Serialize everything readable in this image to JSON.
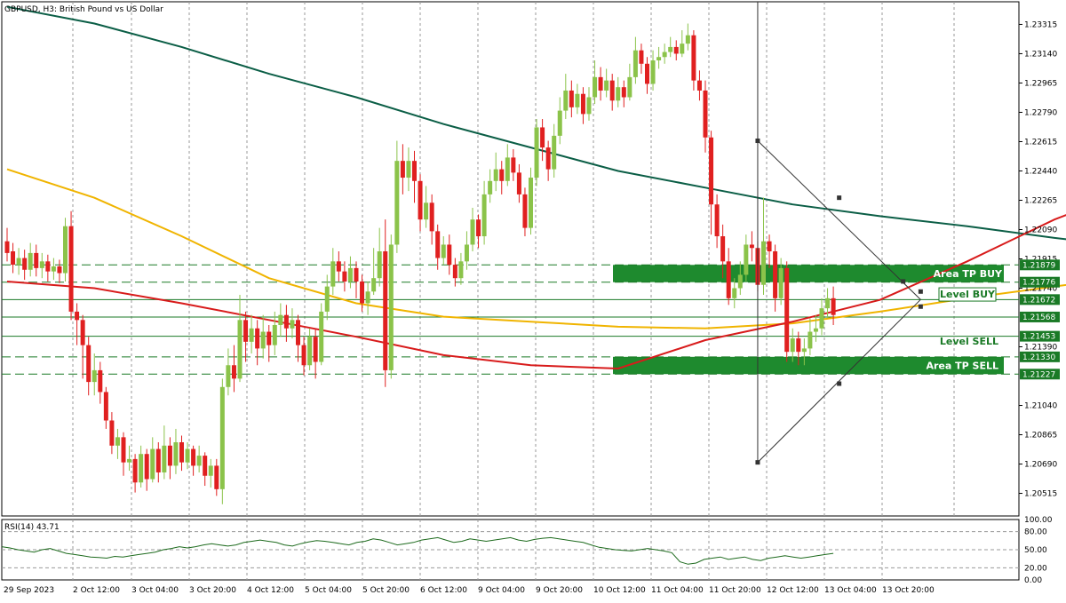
{
  "header": {
    "symbol_text": "GBPUSD, H3:  British Pound vs US Dollar"
  },
  "rsi_label": "RSI(14) 43.71",
  "colors": {
    "bull": "#8bc34a",
    "bear": "#e02020",
    "ma_slow": "#0b5e46",
    "ma_mid": "#f0b400",
    "ma_fast": "#d81b1b",
    "zone": "#1e8a2e",
    "label_bg": "#1a7a26",
    "rsi": "#1e6b1e",
    "grid": "#9a9a9a"
  },
  "chart_data": {
    "type": "candlestick",
    "price_axis": {
      "range": [
        1.2038,
        1.2345
      ],
      "ticks": [
        "1.23315",
        "1.23140",
        "1.22965",
        "1.22790",
        "1.22615",
        "1.22440",
        "1.22265",
        "1.22090",
        "1.21915",
        "1.21740",
        "1.21390",
        "1.21040",
        "1.20865",
        "1.20690",
        "1.20515"
      ]
    },
    "time_labels": [
      "29 Sep 2023",
      "2 Oct 12:00",
      "3 Oct 04:00",
      "3 Oct 20:00",
      "4 Oct 12:00",
      "5 Oct 04:00",
      "5 Oct 20:00",
      "6 Oct 12:00",
      "9 Oct 04:00",
      "9 Oct 20:00",
      "10 Oct 12:00",
      "11 Oct 04:00",
      "11 Oct 20:00",
      "12 Oct 12:00",
      "13 Oct 04:00",
      "13 Oct 20:00"
    ],
    "candles": [
      [
        1.2202,
        1.2195,
        1.221,
        1.219
      ],
      [
        1.2196,
        1.2188,
        1.2201,
        1.2183
      ],
      [
        1.2188,
        1.2192,
        1.2198,
        1.2182
      ],
      [
        1.2192,
        1.2185,
        1.2197,
        1.2179
      ],
      [
        1.2185,
        1.2195,
        1.2201,
        1.2181
      ],
      [
        1.2195,
        1.2186,
        1.22,
        1.2181
      ],
      [
        1.2186,
        1.219,
        1.2195,
        1.218
      ],
      [
        1.219,
        1.2184,
        1.2194,
        1.2178
      ],
      [
        1.2184,
        1.2187,
        1.2192,
        1.2179
      ],
      [
        1.2187,
        1.2183,
        1.2191,
        1.2177
      ],
      [
        1.2183,
        1.2211,
        1.2216,
        1.2178
      ],
      [
        1.2211,
        1.216,
        1.222,
        1.2155
      ],
      [
        1.216,
        1.2155,
        1.2165,
        1.214
      ],
      [
        1.2155,
        1.214,
        1.2158,
        1.212
      ],
      [
        1.214,
        1.2118,
        1.2145,
        1.211
      ],
      [
        1.2118,
        1.2125,
        1.2135,
        1.211
      ],
      [
        1.2125,
        1.2112,
        1.213,
        1.2105
      ],
      [
        1.2112,
        1.2095,
        1.2115,
        1.209
      ],
      [
        1.2095,
        1.208,
        1.21,
        1.2075
      ],
      [
        1.208,
        1.2085,
        1.209,
        1.2072
      ],
      [
        1.2085,
        1.207,
        1.2088,
        1.2062
      ],
      [
        1.207,
        1.2072,
        1.208,
        1.2065
      ],
      [
        1.2072,
        1.2058,
        1.2075,
        1.2052
      ],
      [
        1.2058,
        1.2075,
        1.208,
        1.2055
      ],
      [
        1.2075,
        1.206,
        1.2078,
        1.2053
      ],
      [
        1.206,
        1.2078,
        1.2085,
        1.2058
      ],
      [
        1.2078,
        1.2064,
        1.2082,
        1.2058
      ],
      [
        1.2064,
        1.208,
        1.2092,
        1.206
      ],
      [
        1.208,
        1.2068,
        1.2085,
        1.206
      ],
      [
        1.2068,
        1.2082,
        1.209,
        1.2063
      ],
      [
        1.2082,
        1.207,
        1.2086,
        1.2065
      ],
      [
        1.207,
        1.2078,
        1.2082,
        1.2066
      ],
      [
        1.2078,
        1.2068,
        1.208,
        1.2062
      ],
      [
        1.2068,
        1.2074,
        1.208,
        1.2064
      ],
      [
        1.2074,
        1.2062,
        1.2076,
        1.2056
      ],
      [
        1.2062,
        1.2068,
        1.2072,
        1.2055
      ],
      [
        1.2068,
        1.2054,
        1.2072,
        1.205
      ],
      [
        1.2054,
        1.2115,
        1.212,
        1.2045
      ],
      [
        1.2115,
        1.2128,
        1.2138,
        1.211
      ],
      [
        1.2128,
        1.212,
        1.214,
        1.2112
      ],
      [
        1.212,
        1.2155,
        1.217,
        1.2118
      ],
      [
        1.2155,
        1.2142,
        1.216,
        1.213
      ],
      [
        1.2142,
        1.215,
        1.2158,
        1.2135
      ],
      [
        1.215,
        1.2138,
        1.2155,
        1.2128
      ],
      [
        1.2138,
        1.2148,
        1.2158,
        1.2132
      ],
      [
        1.2148,
        1.214,
        1.2152,
        1.213
      ],
      [
        1.214,
        1.2152,
        1.216,
        1.2134
      ],
      [
        1.2152,
        1.2158,
        1.2165,
        1.2145
      ],
      [
        1.2158,
        1.215,
        1.2164,
        1.2142
      ],
      [
        1.215,
        1.2155,
        1.2162,
        1.2144
      ],
      [
        1.2155,
        1.214,
        1.2158,
        1.213
      ],
      [
        1.214,
        1.2128,
        1.2145,
        1.2122
      ],
      [
        1.2128,
        1.2145,
        1.215,
        1.2125
      ],
      [
        1.2145,
        1.213,
        1.215,
        1.212
      ],
      [
        1.213,
        1.216,
        1.2165,
        1.2128
      ],
      [
        1.216,
        1.2175,
        1.2182,
        1.2155
      ],
      [
        1.2175,
        1.219,
        1.2198,
        1.217
      ],
      [
        1.219,
        1.2184,
        1.2196,
        1.2178
      ],
      [
        1.2184,
        1.2178,
        1.219,
        1.2172
      ],
      [
        1.2178,
        1.2186,
        1.2193,
        1.2174
      ],
      [
        1.2186,
        1.2178,
        1.219,
        1.2168
      ],
      [
        1.2178,
        1.2165,
        1.2182,
        1.216
      ],
      [
        1.2165,
        1.2172,
        1.2178,
        1.2158
      ],
      [
        1.2172,
        1.218,
        1.2198,
        1.217
      ],
      [
        1.218,
        1.2196,
        1.221,
        1.2175
      ],
      [
        1.2196,
        1.2125,
        1.2215,
        1.2115
      ],
      [
        1.2125,
        1.22,
        1.2206,
        1.212
      ],
      [
        1.22,
        1.225,
        1.2262,
        1.2195
      ],
      [
        1.225,
        1.224,
        1.226,
        1.223
      ],
      [
        1.224,
        1.225,
        1.2258,
        1.2232
      ],
      [
        1.225,
        1.2238,
        1.2256,
        1.2225
      ],
      [
        1.2238,
        1.2215,
        1.2242,
        1.2208
      ],
      [
        1.2215,
        1.2225,
        1.2235,
        1.221
      ],
      [
        1.2225,
        1.2208,
        1.223,
        1.22
      ],
      [
        1.2208,
        1.2192,
        1.2212,
        1.2185
      ],
      [
        1.2192,
        1.22,
        1.2205,
        1.2188
      ],
      [
        1.22,
        1.2188,
        1.2206,
        1.2182
      ],
      [
        1.2188,
        1.218,
        1.2192,
        1.2175
      ],
      [
        1.218,
        1.219,
        1.2195,
        1.2176
      ],
      [
        1.219,
        1.22,
        1.2208,
        1.2185
      ],
      [
        1.22,
        1.2215,
        1.2222,
        1.2196
      ],
      [
        1.2215,
        1.2205,
        1.2218,
        1.2198
      ],
      [
        1.2205,
        1.223,
        1.2238,
        1.22
      ],
      [
        1.223,
        1.2238,
        1.2245,
        1.2225
      ],
      [
        1.2238,
        1.2245,
        1.2255,
        1.2232
      ],
      [
        1.2245,
        1.2238,
        1.225,
        1.223
      ],
      [
        1.2238,
        1.2252,
        1.226,
        1.2235
      ],
      [
        1.2252,
        1.2243,
        1.2257,
        1.2238
      ],
      [
        1.2243,
        1.223,
        1.2248,
        1.2225
      ],
      [
        1.223,
        1.221,
        1.2234,
        1.2205
      ],
      [
        1.221,
        1.224,
        1.2246,
        1.2206
      ],
      [
        1.224,
        1.227,
        1.2275,
        1.2235
      ],
      [
        1.227,
        1.2258,
        1.2275,
        1.225
      ],
      [
        1.2258,
        1.2245,
        1.2262,
        1.2238
      ],
      [
        1.2245,
        1.2265,
        1.2272,
        1.224
      ],
      [
        1.2265,
        1.228,
        1.2288,
        1.226
      ],
      [
        1.228,
        1.2292,
        1.2302,
        1.2275
      ],
      [
        1.2292,
        1.2282,
        1.2298,
        1.2276
      ],
      [
        1.2282,
        1.229,
        1.2296,
        1.2278
      ],
      [
        1.229,
        1.2278,
        1.2294,
        1.2272
      ],
      [
        1.2278,
        1.2288,
        1.2294,
        1.2274
      ],
      [
        1.2288,
        1.23,
        1.231,
        1.2284
      ],
      [
        1.23,
        1.2292,
        1.2306,
        1.2286
      ],
      [
        1.2292,
        1.2298,
        1.2305,
        1.2288
      ],
      [
        1.2298,
        1.2286,
        1.2302,
        1.228
      ],
      [
        1.2286,
        1.2294,
        1.23,
        1.2282
      ],
      [
        1.2294,
        1.2288,
        1.2298,
        1.2282
      ],
      [
        1.2288,
        1.23,
        1.2308,
        1.2286
      ],
      [
        1.23,
        1.2316,
        1.2324,
        1.2296
      ],
      [
        1.2316,
        1.2308,
        1.232,
        1.2302
      ],
      [
        1.2308,
        1.2296,
        1.2312,
        1.229
      ],
      [
        1.2296,
        1.231,
        1.2316,
        1.2292
      ],
      [
        1.231,
        1.2312,
        1.2318,
        1.2305
      ],
      [
        1.2312,
        1.2315,
        1.232,
        1.2308
      ],
      [
        1.2315,
        1.2318,
        1.2324,
        1.2312
      ],
      [
        1.2318,
        1.2314,
        1.2322,
        1.231
      ],
      [
        1.2314,
        1.232,
        1.2328,
        1.2312
      ],
      [
        1.232,
        1.2325,
        1.2332,
        1.2316
      ],
      [
        1.2325,
        1.2298,
        1.2328,
        1.2292
      ],
      [
        1.2298,
        1.2292,
        1.2304,
        1.2286
      ],
      [
        1.2292,
        1.2264,
        1.2298,
        1.2255
      ],
      [
        1.2264,
        1.2224,
        1.2268,
        1.2206
      ],
      [
        1.2224,
        1.2205,
        1.223,
        1.2198
      ],
      [
        1.2205,
        1.219,
        1.2212,
        1.218
      ],
      [
        1.219,
        1.2168,
        1.2198,
        1.2164
      ],
      [
        1.2168,
        1.2174,
        1.218,
        1.2162
      ],
      [
        1.2174,
        1.2182,
        1.219,
        1.217
      ],
      [
        1.2182,
        1.22,
        1.2206,
        1.2178
      ],
      [
        1.22,
        1.2198,
        1.2208,
        1.219
      ],
      [
        1.2198,
        1.2176,
        1.2202,
        1.2172
      ],
      [
        1.2176,
        1.2202,
        1.2228,
        1.217
      ],
      [
        1.2202,
        1.2196,
        1.2206,
        1.2186
      ],
      [
        1.2196,
        1.2168,
        1.22,
        1.216
      ],
      [
        1.2168,
        1.2186,
        1.2192,
        1.2164
      ],
      [
        1.2186,
        1.2136,
        1.219,
        1.213
      ],
      [
        1.2136,
        1.2144,
        1.215,
        1.213
      ],
      [
        1.2144,
        1.2136,
        1.2148,
        1.2128
      ],
      [
        1.2136,
        1.2138,
        1.2144,
        1.2128
      ],
      [
        1.2138,
        1.2148,
        1.2156,
        1.2134
      ],
      [
        1.2148,
        1.215,
        1.2158,
        1.2142
      ],
      [
        1.215,
        1.2162,
        1.2168,
        1.2146
      ],
      [
        1.2162,
        1.2168,
        1.2174,
        1.2156
      ],
      [
        1.2168,
        1.2158,
        1.2175,
        1.2152
      ]
    ],
    "moving_averages": [
      {
        "role": "ma_slow",
        "points": [
          [
            0,
            1.2342
          ],
          [
            15,
            1.2332
          ],
          [
            30,
            1.2318
          ],
          [
            45,
            1.2302
          ],
          [
            60,
            1.2288
          ],
          [
            75,
            1.2272
          ],
          [
            90,
            1.2258
          ],
          [
            105,
            1.2244
          ],
          [
            120,
            1.2234
          ],
          [
            135,
            1.2224
          ],
          [
            150,
            1.2217
          ],
          [
            165,
            1.2211
          ],
          [
            180,
            1.2204
          ],
          [
            195,
            1.2198
          ],
          [
            210,
            1.2195
          ],
          [
            225,
            1.2192
          ],
          [
            240,
            1.2189
          ]
        ]
      },
      {
        "role": "ma_mid",
        "points": [
          [
            0,
            1.2245
          ],
          [
            15,
            1.2228
          ],
          [
            30,
            1.2205
          ],
          [
            45,
            1.218
          ],
          [
            60,
            1.2165
          ],
          [
            75,
            1.2157
          ],
          [
            90,
            1.2154
          ],
          [
            105,
            1.2151
          ],
          [
            120,
            1.215
          ],
          [
            135,
            1.2153
          ],
          [
            150,
            1.216
          ],
          [
            165,
            1.2168
          ],
          [
            180,
            1.2175
          ],
          [
            195,
            1.2182
          ],
          [
            210,
            1.2185
          ],
          [
            225,
            1.2195
          ],
          [
            240,
            1.2205
          ]
        ]
      },
      {
        "role": "ma_fast",
        "points": [
          [
            0,
            1.2178
          ],
          [
            15,
            1.2174
          ],
          [
            30,
            1.2165
          ],
          [
            45,
            1.2155
          ],
          [
            60,
            1.2145
          ],
          [
            75,
            1.2134
          ],
          [
            90,
            1.2128
          ],
          [
            105,
            1.2126
          ],
          [
            120,
            1.2143
          ],
          [
            135,
            1.2154
          ],
          [
            150,
            1.2167
          ],
          [
            165,
            1.219
          ],
          [
            180,
            1.2215
          ],
          [
            195,
            1.2235
          ],
          [
            210,
            1.2248
          ],
          [
            225,
            1.2259
          ],
          [
            240,
            1.2262
          ],
          [
            255,
            1.2258
          ],
          [
            270,
            1.2255
          ],
          [
            285,
            1.225
          ],
          [
            300,
            1.2238
          ]
        ]
      }
    ],
    "levels": [
      {
        "price": "1.21879",
        "style": "dashed"
      },
      {
        "price": "1.21776",
        "style": "dashed"
      },
      {
        "price": "1.21672",
        "style": "solid"
      },
      {
        "price": "1.21568",
        "style": "solid"
      },
      {
        "price": "1.21453",
        "style": "solid"
      },
      {
        "price": "1.21330",
        "style": "dashed"
      },
      {
        "price": "1.21227",
        "style": "dashed"
      }
    ],
    "zones": [
      {
        "label": "Area TP BUY",
        "top": 1.21879,
        "bottom": 1.21776
      },
      {
        "label": "Area TP SELL",
        "top": 1.2133,
        "bottom": 1.21227
      }
    ],
    "annotations": [
      {
        "label": "Level BUY",
        "price": 1.217
      },
      {
        "label": "Level SELL",
        "price": 1.2142
      }
    ],
    "rsi": {
      "range": [
        0,
        100
      ],
      "levels": [
        80,
        50,
        20
      ],
      "ticks": [
        "100.00",
        "80.00",
        "50.00",
        "20.00",
        "0.00"
      ],
      "values": [
        55,
        53,
        50,
        48,
        46,
        50,
        52,
        48,
        44,
        42,
        40,
        38,
        37,
        36,
        39,
        38,
        40,
        42,
        44,
        46,
        50,
        52,
        55,
        53,
        55,
        58,
        60,
        58,
        56,
        58,
        62,
        64,
        66,
        64,
        62,
        58,
        56,
        60,
        63,
        65,
        64,
        62,
        60,
        58,
        62,
        64,
        68,
        66,
        62,
        58,
        60,
        62,
        66,
        68,
        70,
        66,
        62,
        64,
        68,
        66,
        64,
        66,
        68,
        70,
        66,
        64,
        67,
        69,
        70,
        68,
        66,
        64,
        62,
        58,
        54,
        52,
        50,
        49,
        48,
        50,
        52,
        50,
        48,
        45,
        30,
        26,
        28,
        34,
        36,
        38,
        34,
        36,
        38,
        34,
        32,
        36,
        38,
        40,
        38,
        36,
        38,
        40,
        42,
        44
      ]
    }
  }
}
